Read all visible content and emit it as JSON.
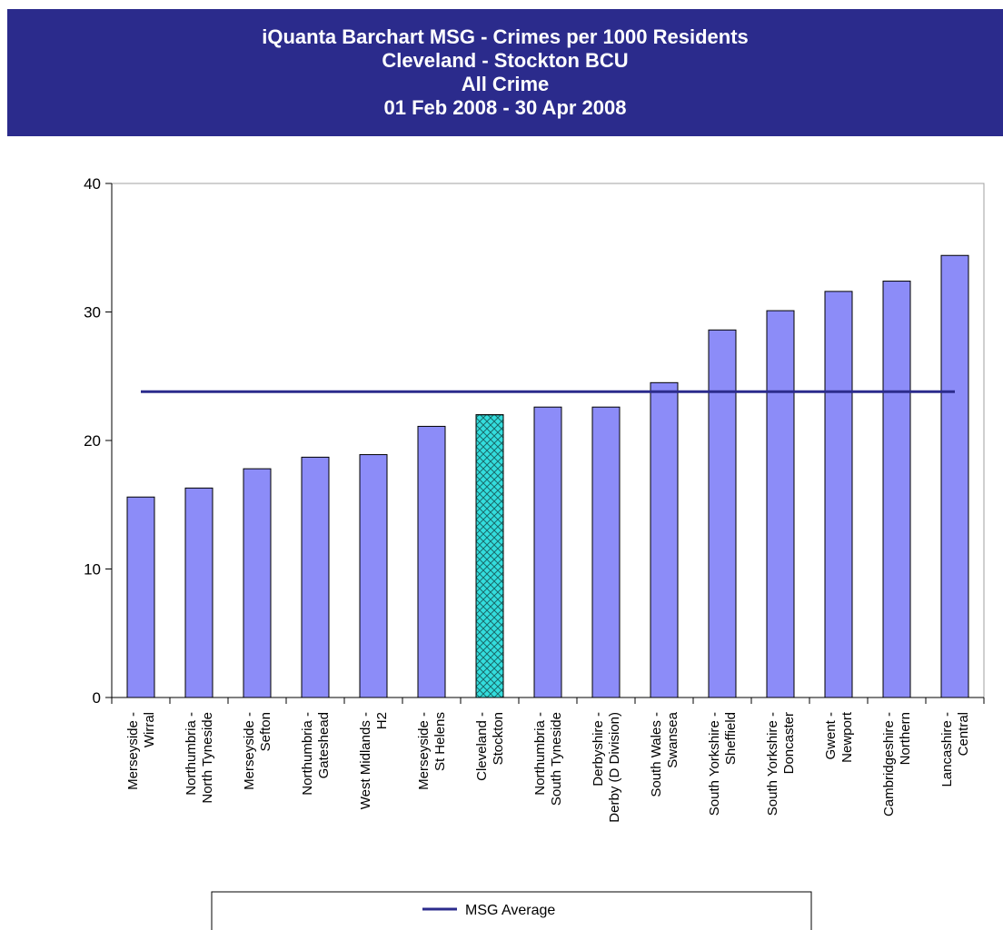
{
  "header": {
    "title": "iQuanta Barchart MSG - Crimes per 1000 Residents",
    "subtitle1": "Cleveland - Stockton BCU",
    "subtitle2": "All Crime",
    "date_range": "01 Feb 2008 - 30 Apr 2008"
  },
  "colors": {
    "header_bg": "#2b2b8c",
    "bar": "#8c8cf8",
    "highlight_bar": "#33dddd",
    "average_line": "#2b2b8c"
  },
  "chart_data": {
    "type": "bar",
    "title": "iQuanta Barchart MSG - Crimes per 1000 Residents",
    "xlabel": "",
    "ylabel": "",
    "ylim": [
      0,
      40
    ],
    "yticks": [
      0,
      10,
      20,
      30,
      40
    ],
    "grid": false,
    "legend_position": "bottom",
    "categories": [
      [
        "Merseyside -",
        "Wirral"
      ],
      [
        "Northumbria -",
        "North Tyneside"
      ],
      [
        "Merseyside -",
        "Sefton"
      ],
      [
        "Northumbria -",
        "Gateshead"
      ],
      [
        "West Midlands -",
        "H2"
      ],
      [
        "Merseyside -",
        "St Helens"
      ],
      [
        "Cleveland -",
        "Stockton"
      ],
      [
        "Northumbria -",
        "South Tyneside"
      ],
      [
        "Derbyshire -",
        "Derby (D Division)"
      ],
      [
        "South Wales -",
        "Swansea"
      ],
      [
        "South Yorkshire -",
        "Sheffield"
      ],
      [
        "South Yorkshire -",
        "Doncaster"
      ],
      [
        "Gwent -",
        "Newport"
      ],
      [
        "Cambridgeshire -",
        "Northern"
      ],
      [
        "Lancashire -",
        "Central"
      ]
    ],
    "values": [
      15.6,
      16.3,
      17.8,
      18.7,
      18.9,
      21.1,
      22.0,
      22.6,
      22.6,
      24.5,
      28.6,
      30.1,
      31.6,
      32.4,
      34.4
    ],
    "highlight_index": 6,
    "average": {
      "name": "MSG Average",
      "value": 23.8
    }
  }
}
